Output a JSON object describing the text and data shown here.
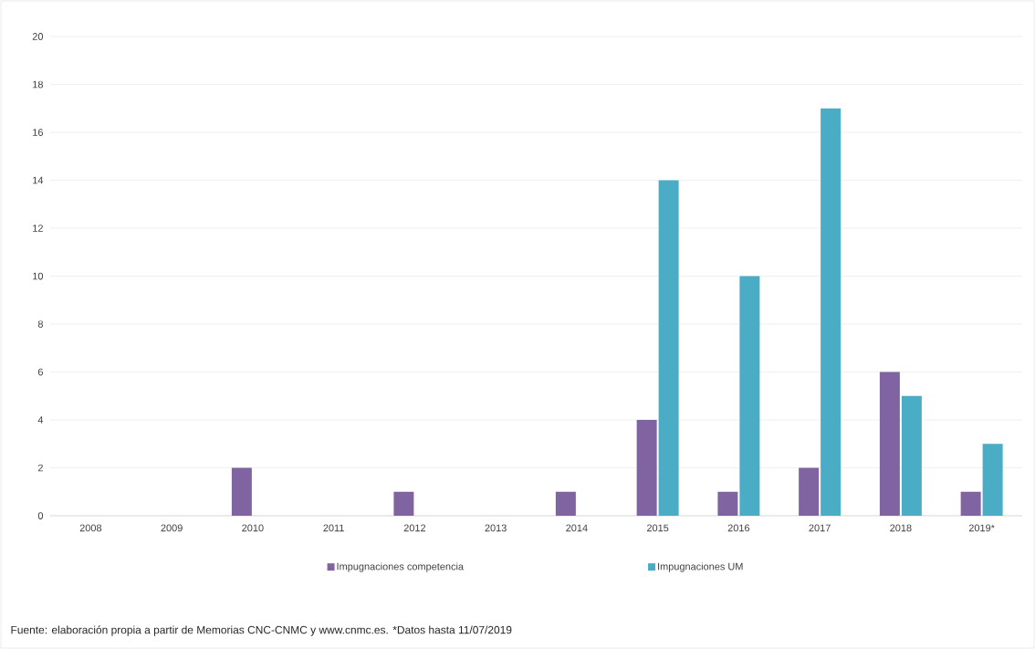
{
  "chart_data": {
    "type": "bar",
    "categories": [
      "2008",
      "2009",
      "2010",
      "2011",
      "2012",
      "2013",
      "2014",
      "2015",
      "2016",
      "2017",
      "2018",
      "2019*"
    ],
    "series": [
      {
        "name": "Impugnaciones competencia",
        "color": "#8064a2",
        "values": [
          0,
          0,
          2,
          0,
          1,
          0,
          1,
          4,
          1,
          2,
          6,
          1
        ]
      },
      {
        "name": "Impugnaciones UM",
        "color": "#4bacc6",
        "values": [
          0,
          0,
          0,
          0,
          0,
          0,
          0,
          14,
          10,
          17,
          5,
          3
        ]
      }
    ],
    "ylim": [
      0,
      20
    ],
    "yticks": [
      0,
      2,
      4,
      6,
      8,
      10,
      12,
      14,
      16,
      18,
      20
    ],
    "grid": "y",
    "legend": "bottom",
    "annotations": [
      "Fuente: elaboración propia a partir de Memorias CNC-CNMC y www.cnmc.es. *Datos hasta 11/07/2019"
    ]
  }
}
